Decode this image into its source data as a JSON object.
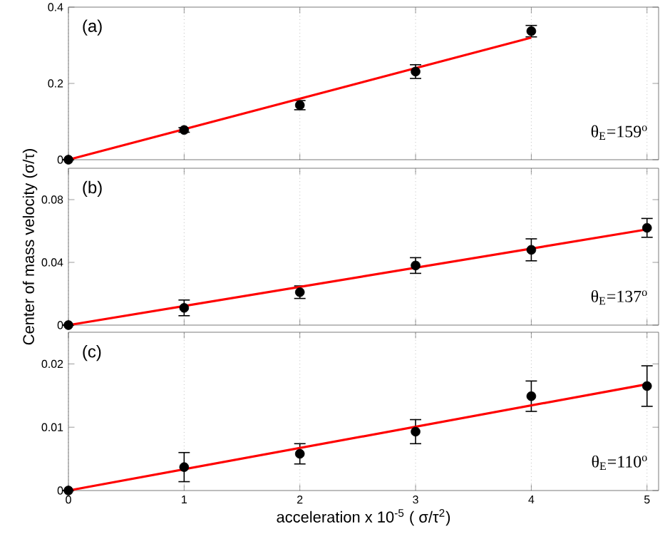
{
  "chart_data": [
    {
      "type": "scatter",
      "xlim": [
        0,
        5.1
      ],
      "xticks": [
        0,
        1,
        2,
        3,
        4,
        5
      ],
      "ylim": [
        0,
        0.4
      ],
      "yticks": [
        0,
        0.2,
        0.4
      ],
      "grid": "x",
      "tick_labels": "y",
      "annotations": [
        "(a)",
        "θ$_{E}$=159$^{o}$"
      ],
      "series": [
        {
          "color": "#000000",
          "marker": "circle",
          "x": [
            0,
            1,
            2,
            3,
            4
          ],
          "values": [
            0,
            0.078,
            0.143,
            0.231,
            0.337
          ],
          "errors": [
            null,
            0.006,
            0.012,
            0.018,
            0.015
          ]
        },
        {
          "type": "line",
          "marker": "none",
          "color": "#ff0000",
          "x": [
            0,
            4
          ],
          "values": [
            0,
            0.32
          ]
        }
      ]
    },
    {
      "type": "scatter",
      "xlim": [
        0,
        5.1
      ],
      "xticks": [
        0,
        1,
        2,
        3,
        4,
        5
      ],
      "ylim": [
        0,
        0.1
      ],
      "yticks": [
        0,
        0.04,
        0.08
      ],
      "grid": "x",
      "tick_labels": "y",
      "ylabel": "Center of mass velocity (σ/τ)",
      "annotations": [
        "(b)",
        "θ$_{E}$=137$^{o}$"
      ],
      "series": [
        {
          "color": "#000000",
          "marker": "circle",
          "x": [
            0,
            1,
            2,
            3,
            4,
            5
          ],
          "values": [
            0,
            0.011,
            0.021,
            0.038,
            0.048,
            0.062
          ],
          "errors": [
            null,
            0.005,
            0.004,
            0.005,
            0.007,
            0.006
          ]
        },
        {
          "type": "line",
          "marker": "none",
          "color": "#ff0000",
          "x": [
            0,
            5
          ],
          "values": [
            0,
            0.061
          ]
        }
      ]
    },
    {
      "type": "scatter",
      "xlim": [
        0,
        5.1
      ],
      "xticks": [
        0,
        1,
        2,
        3,
        4,
        5
      ],
      "ylim": [
        0,
        0.025
      ],
      "yticks": [
        0,
        0.01,
        0.02
      ],
      "grid": "x",
      "xlabel": "acceleration x 10$^{-5}$ ( σ/τ$^{2}$)",
      "annotations": [
        "(c)",
        "θ$_{E}$=110$^{o}$"
      ],
      "series": [
        {
          "color": "#000000",
          "marker": "circle",
          "x": [
            0,
            1,
            2,
            3,
            4,
            5
          ],
          "values": [
            0,
            0.0037,
            0.0058,
            0.0093,
            0.0149,
            0.0165
          ],
          "errors": [
            null,
            0.0023,
            0.0016,
            0.0019,
            0.0024,
            0.0032
          ]
        },
        {
          "type": "line",
          "marker": "none",
          "color": "#ff0000",
          "x": [
            0,
            5
          ],
          "values": [
            0,
            0.0168
          ]
        }
      ]
    }
  ]
}
